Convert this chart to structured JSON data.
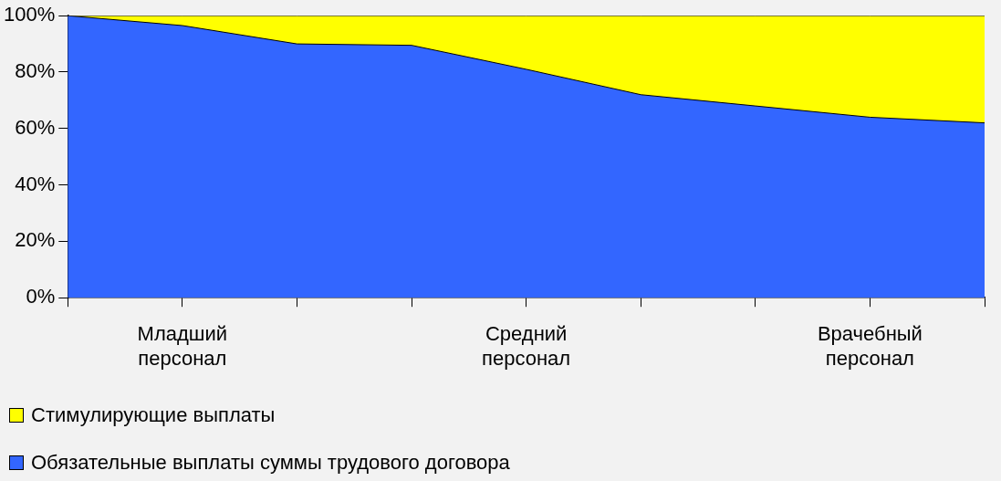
{
  "chart_data": {
    "type": "area",
    "stacked": true,
    "categories": [
      null,
      "Младший персонал",
      null,
      null,
      "Средний персонал",
      null,
      null,
      "Врачебный персонал",
      null
    ],
    "series": [
      {
        "name": "Обязательные выплаты суммы трудового договора",
        "color": "#3366ff",
        "values": [
          100,
          96.5,
          90,
          89.5,
          81,
          72,
          68,
          64,
          62
        ]
      },
      {
        "name": "Стимулирующие выплаты",
        "color": "#ffff00",
        "values": [
          0,
          3.5,
          10,
          10.5,
          19,
          28,
          32,
          36,
          38
        ]
      }
    ],
    "ylim": [
      0,
      100
    ],
    "yticks": [
      {
        "value": 0,
        "label": "0%"
      },
      {
        "value": 20,
        "label": "20%"
      },
      {
        "value": 40,
        "label": "40%"
      },
      {
        "value": 60,
        "label": "60%"
      },
      {
        "value": 80,
        "label": "80%"
      },
      {
        "value": 100,
        "label": "100%"
      }
    ],
    "legend": "bottom left"
  }
}
